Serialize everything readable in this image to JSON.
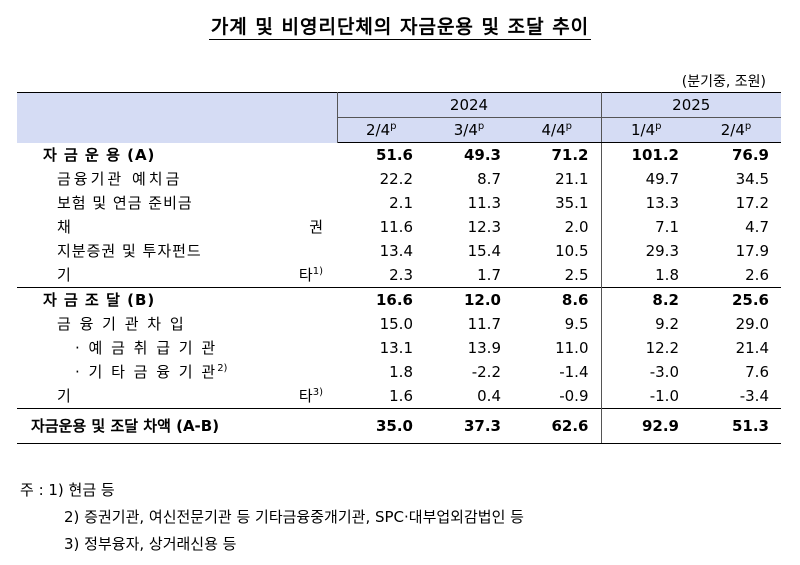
{
  "title": "가계 및 비영리단체의 자금운용 및 조달 추이",
  "unit": "(분기중, 조원)",
  "header": {
    "year2024": "2024",
    "year2025": "2025",
    "quarters": [
      {
        "q": "2/4",
        "sup": "p"
      },
      {
        "q": "3/4",
        "sup": "p"
      },
      {
        "q": "4/4",
        "sup": "p"
      },
      {
        "q": "1/4",
        "sup": "p"
      },
      {
        "q": "2/4",
        "sup": "p"
      }
    ]
  },
  "rows": {
    "fund_use": {
      "label": "자  금  운  용 (A)",
      "values": [
        "51.6",
        "49.3",
        "71.2",
        "101.2",
        "76.9"
      ]
    },
    "deposits": {
      "label": "금융기관 예치금",
      "values": [
        "22.2",
        "8.7",
        "21.1",
        "49.7",
        "34.5"
      ]
    },
    "insurance": {
      "label": "보험 및 연금 준비금",
      "values": [
        "2.1",
        "11.3",
        "35.1",
        "13.3",
        "17.2"
      ]
    },
    "bonds": {
      "label_a": "채",
      "label_b": "권",
      "values": [
        "11.6",
        "12.3",
        "2.0",
        "7.1",
        "4.7"
      ]
    },
    "equity": {
      "label": "지분증권 및 투자펀드",
      "values": [
        "13.4",
        "15.4",
        "10.5",
        "29.3",
        "17.9"
      ]
    },
    "other_use": {
      "label_a": "기",
      "label_b": "타",
      "sup": "1)",
      "values": [
        "2.3",
        "1.7",
        "2.5",
        "1.8",
        "2.6"
      ]
    },
    "fund_raise": {
      "label": "자  금  조  달 (B)",
      "values": [
        "16.6",
        "12.0",
        "8.6",
        "8.2",
        "25.6"
      ]
    },
    "borrowing": {
      "label": "금 융 기 관 차 입",
      "values": [
        "15.0",
        "11.7",
        "9.5",
        "9.2",
        "29.0"
      ]
    },
    "depository": {
      "label": "· 예 금 취 급 기 관",
      "values": [
        "13.1",
        "13.9",
        "11.0",
        "12.2",
        "21.4"
      ]
    },
    "other_fin": {
      "label": "· 기 타 금 융 기 관",
      "sup": "2)",
      "values": [
        "1.8",
        "-2.2",
        "-1.4",
        "-3.0",
        "7.6"
      ]
    },
    "other_raise": {
      "label_a": "기",
      "label_b": "타",
      "sup": "3)",
      "values": [
        "1.6",
        "0.4",
        "-0.9",
        "-1.0",
        "-3.4"
      ]
    },
    "net": {
      "label": "자금운용 및 조달 차액 (A-B)",
      "values": [
        "35.0",
        "37.3",
        "62.6",
        "92.9",
        "51.3"
      ]
    }
  },
  "notes": {
    "n1": "주 : 1) 현금 등",
    "n2": "2) 증권기관, 여신전문기관 등 기타금융중개기관, SPC·대부업외감법인 등",
    "n3": "3) 정부융자, 상거래신용 등"
  }
}
